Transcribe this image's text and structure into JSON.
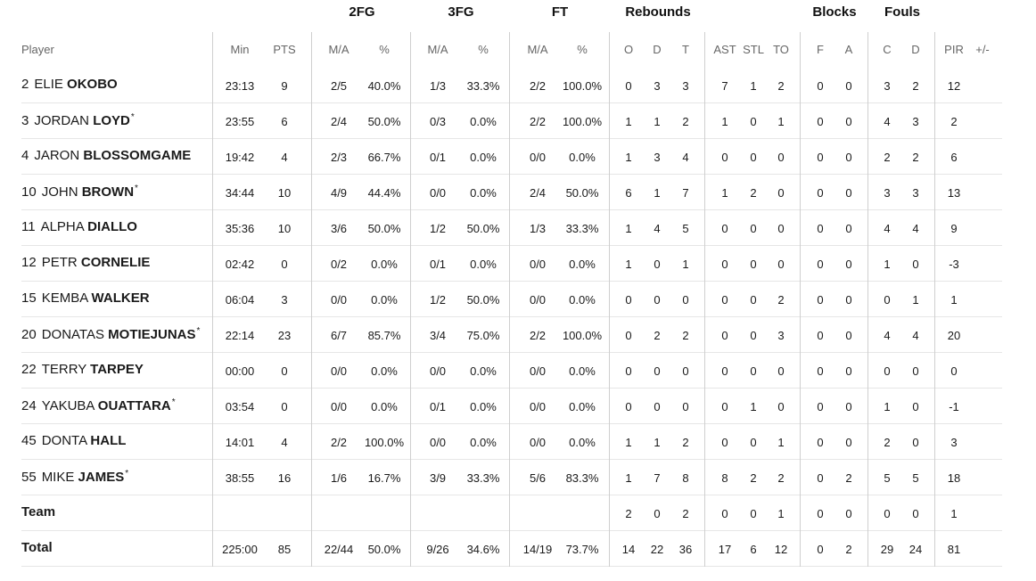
{
  "group_headers": {
    "fg2": "2FG",
    "fg3": "3FG",
    "ft": "FT",
    "rebounds": "Rebounds",
    "blocks": "Blocks",
    "fouls": "Fouls"
  },
  "headers": {
    "player": "Player",
    "min": "Min",
    "pts": "PTS",
    "fg2_ma": "M/A",
    "fg2_pct": "%",
    "fg3_ma": "M/A",
    "fg3_pct": "%",
    "ft_ma": "M/A",
    "ft_pct": "%",
    "reb_o": "O",
    "reb_d": "D",
    "reb_t": "T",
    "ast": "AST",
    "stl": "STL",
    "to": "TO",
    "blk_f": "F",
    "blk_a": "A",
    "foul_c": "C",
    "foul_d": "D",
    "pir": "PIR",
    "pm": "+/-"
  },
  "players": [
    {
      "number": "2",
      "first": "ELIE",
      "last": "OKOBO",
      "starter": false,
      "min": "23:13",
      "pts": "9",
      "fg2_ma": "2/5",
      "fg2_pct": "40.0%",
      "fg3_ma": "1/3",
      "fg3_pct": "33.3%",
      "ft_ma": "2/2",
      "ft_pct": "100.0%",
      "reb_o": "0",
      "reb_d": "3",
      "reb_t": "3",
      "ast": "7",
      "stl": "1",
      "to": "2",
      "blk_f": "0",
      "blk_a": "0",
      "foul_c": "3",
      "foul_d": "2",
      "pir": "12",
      "pm": ""
    },
    {
      "number": "3",
      "first": "JORDAN",
      "last": "LOYD",
      "starter": true,
      "min": "23:55",
      "pts": "6",
      "fg2_ma": "2/4",
      "fg2_pct": "50.0%",
      "fg3_ma": "0/3",
      "fg3_pct": "0.0%",
      "ft_ma": "2/2",
      "ft_pct": "100.0%",
      "reb_o": "1",
      "reb_d": "1",
      "reb_t": "2",
      "ast": "1",
      "stl": "0",
      "to": "1",
      "blk_f": "0",
      "blk_a": "0",
      "foul_c": "4",
      "foul_d": "3",
      "pir": "2",
      "pm": ""
    },
    {
      "number": "4",
      "first": "JARON",
      "last": "BLOSSOMGAME",
      "starter": false,
      "min": "19:42",
      "pts": "4",
      "fg2_ma": "2/3",
      "fg2_pct": "66.7%",
      "fg3_ma": "0/1",
      "fg3_pct": "0.0%",
      "ft_ma": "0/0",
      "ft_pct": "0.0%",
      "reb_o": "1",
      "reb_d": "3",
      "reb_t": "4",
      "ast": "0",
      "stl": "0",
      "to": "0",
      "blk_f": "0",
      "blk_a": "0",
      "foul_c": "2",
      "foul_d": "2",
      "pir": "6",
      "pm": ""
    },
    {
      "number": "10",
      "first": "JOHN",
      "last": "BROWN",
      "starter": true,
      "min": "34:44",
      "pts": "10",
      "fg2_ma": "4/9",
      "fg2_pct": "44.4%",
      "fg3_ma": "0/0",
      "fg3_pct": "0.0%",
      "ft_ma": "2/4",
      "ft_pct": "50.0%",
      "reb_o": "6",
      "reb_d": "1",
      "reb_t": "7",
      "ast": "1",
      "stl": "2",
      "to": "0",
      "blk_f": "0",
      "blk_a": "0",
      "foul_c": "3",
      "foul_d": "3",
      "pir": "13",
      "pm": ""
    },
    {
      "number": "11",
      "first": "ALPHA",
      "last": "DIALLO",
      "starter": false,
      "min": "35:36",
      "pts": "10",
      "fg2_ma": "3/6",
      "fg2_pct": "50.0%",
      "fg3_ma": "1/2",
      "fg3_pct": "50.0%",
      "ft_ma": "1/3",
      "ft_pct": "33.3%",
      "reb_o": "1",
      "reb_d": "4",
      "reb_t": "5",
      "ast": "0",
      "stl": "0",
      "to": "0",
      "blk_f": "0",
      "blk_a": "0",
      "foul_c": "4",
      "foul_d": "4",
      "pir": "9",
      "pm": ""
    },
    {
      "number": "12",
      "first": "PETR",
      "last": "CORNELIE",
      "starter": false,
      "min": "02:42",
      "pts": "0",
      "fg2_ma": "0/2",
      "fg2_pct": "0.0%",
      "fg3_ma": "0/1",
      "fg3_pct": "0.0%",
      "ft_ma": "0/0",
      "ft_pct": "0.0%",
      "reb_o": "1",
      "reb_d": "0",
      "reb_t": "1",
      "ast": "0",
      "stl": "0",
      "to": "0",
      "blk_f": "0",
      "blk_a": "0",
      "foul_c": "1",
      "foul_d": "0",
      "pir": "-3",
      "pm": ""
    },
    {
      "number": "15",
      "first": "KEMBA",
      "last": "WALKER",
      "starter": false,
      "min": "06:04",
      "pts": "3",
      "fg2_ma": "0/0",
      "fg2_pct": "0.0%",
      "fg3_ma": "1/2",
      "fg3_pct": "50.0%",
      "ft_ma": "0/0",
      "ft_pct": "0.0%",
      "reb_o": "0",
      "reb_d": "0",
      "reb_t": "0",
      "ast": "0",
      "stl": "0",
      "to": "2",
      "blk_f": "0",
      "blk_a": "0",
      "foul_c": "0",
      "foul_d": "1",
      "pir": "1",
      "pm": ""
    },
    {
      "number": "20",
      "first": "DONATAS",
      "last": "MOTIEJUNAS",
      "starter": true,
      "min": "22:14",
      "pts": "23",
      "fg2_ma": "6/7",
      "fg2_pct": "85.7%",
      "fg3_ma": "3/4",
      "fg3_pct": "75.0%",
      "ft_ma": "2/2",
      "ft_pct": "100.0%",
      "reb_o": "0",
      "reb_d": "2",
      "reb_t": "2",
      "ast": "0",
      "stl": "0",
      "to": "3",
      "blk_f": "0",
      "blk_a": "0",
      "foul_c": "4",
      "foul_d": "4",
      "pir": "20",
      "pm": ""
    },
    {
      "number": "22",
      "first": "TERRY",
      "last": "TARPEY",
      "starter": false,
      "min": "00:00",
      "pts": "0",
      "fg2_ma": "0/0",
      "fg2_pct": "0.0%",
      "fg3_ma": "0/0",
      "fg3_pct": "0.0%",
      "ft_ma": "0/0",
      "ft_pct": "0.0%",
      "reb_o": "0",
      "reb_d": "0",
      "reb_t": "0",
      "ast": "0",
      "stl": "0",
      "to": "0",
      "blk_f": "0",
      "blk_a": "0",
      "foul_c": "0",
      "foul_d": "0",
      "pir": "0",
      "pm": ""
    },
    {
      "number": "24",
      "first": "YAKUBA",
      "last": "OUATTARA",
      "starter": true,
      "min": "03:54",
      "pts": "0",
      "fg2_ma": "0/0",
      "fg2_pct": "0.0%",
      "fg3_ma": "0/1",
      "fg3_pct": "0.0%",
      "ft_ma": "0/0",
      "ft_pct": "0.0%",
      "reb_o": "0",
      "reb_d": "0",
      "reb_t": "0",
      "ast": "0",
      "stl": "1",
      "to": "0",
      "blk_f": "0",
      "blk_a": "0",
      "foul_c": "1",
      "foul_d": "0",
      "pir": "-1",
      "pm": ""
    },
    {
      "number": "45",
      "first": "DONTA",
      "last": "HALL",
      "starter": false,
      "min": "14:01",
      "pts": "4",
      "fg2_ma": "2/2",
      "fg2_pct": "100.0%",
      "fg3_ma": "0/0",
      "fg3_pct": "0.0%",
      "ft_ma": "0/0",
      "ft_pct": "0.0%",
      "reb_o": "1",
      "reb_d": "1",
      "reb_t": "2",
      "ast": "0",
      "stl": "0",
      "to": "1",
      "blk_f": "0",
      "blk_a": "0",
      "foul_c": "2",
      "foul_d": "0",
      "pir": "3",
      "pm": ""
    },
    {
      "number": "55",
      "first": "MIKE",
      "last": "JAMES",
      "starter": true,
      "min": "38:55",
      "pts": "16",
      "fg2_ma": "1/6",
      "fg2_pct": "16.7%",
      "fg3_ma": "3/9",
      "fg3_pct": "33.3%",
      "ft_ma": "5/6",
      "ft_pct": "83.3%",
      "reb_o": "1",
      "reb_d": "7",
      "reb_t": "8",
      "ast": "8",
      "stl": "2",
      "to": "2",
      "blk_f": "0",
      "blk_a": "2",
      "foul_c": "5",
      "foul_d": "5",
      "pir": "18",
      "pm": ""
    }
  ],
  "team": {
    "label": "Team",
    "min": "",
    "pts": "",
    "fg2_ma": "",
    "fg2_pct": "",
    "fg3_ma": "",
    "fg3_pct": "",
    "ft_ma": "",
    "ft_pct": "",
    "reb_o": "2",
    "reb_d": "0",
    "reb_t": "2",
    "ast": "0",
    "stl": "0",
    "to": "1",
    "blk_f": "0",
    "blk_a": "0",
    "foul_c": "0",
    "foul_d": "0",
    "pir": "1",
    "pm": ""
  },
  "total": {
    "label": "Total",
    "min": "225:00",
    "pts": "85",
    "fg2_ma": "22/44",
    "fg2_pct": "50.0%",
    "fg3_ma": "9/26",
    "fg3_pct": "34.6%",
    "ft_ma": "14/19",
    "ft_pct": "73.7%",
    "reb_o": "14",
    "reb_d": "22",
    "reb_t": "36",
    "ast": "17",
    "stl": "6",
    "to": "12",
    "blk_f": "0",
    "blk_a": "2",
    "foul_c": "29",
    "foul_d": "24",
    "pir": "81",
    "pm": ""
  },
  "starter_mark": "*",
  "colors": {
    "text": "#1a1a1a",
    "header_text": "#666666",
    "divider": "#cfcfcf",
    "row_line": "#e6e6e6"
  }
}
